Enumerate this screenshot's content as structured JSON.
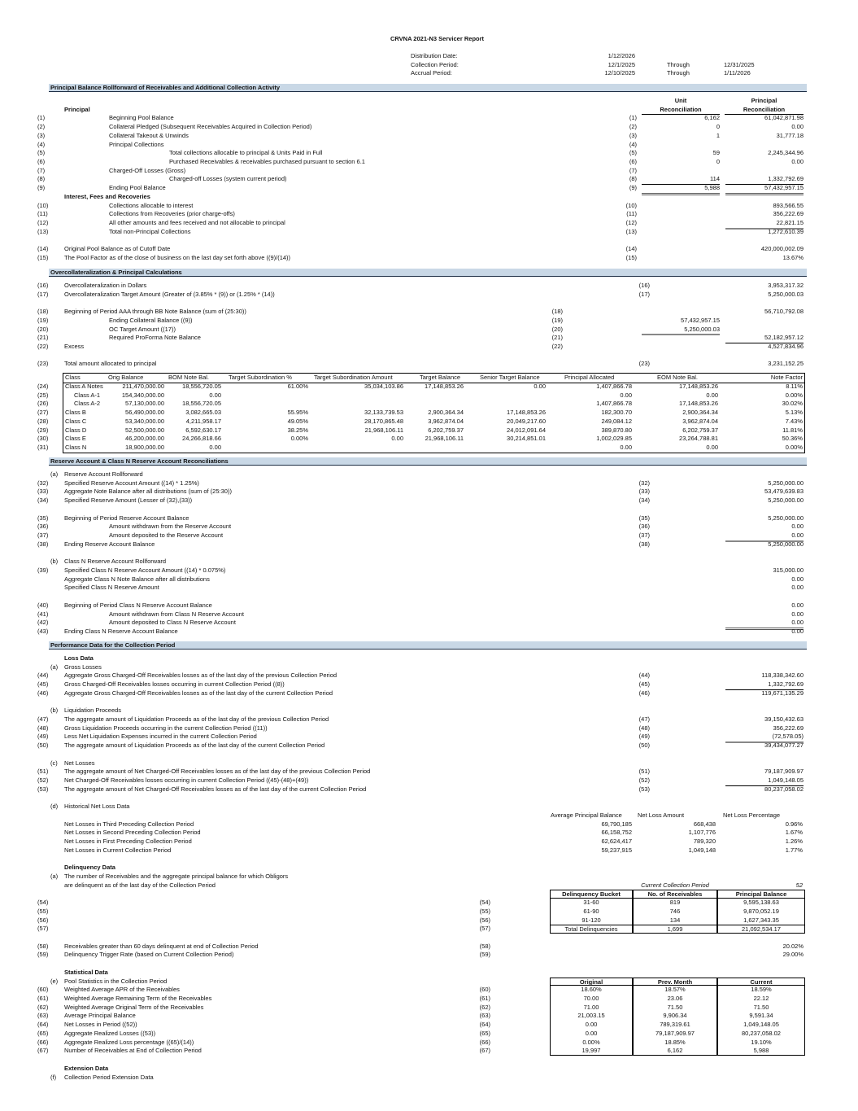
{
  "title": "CRVNA 2021-N3 Servicer Report",
  "header": {
    "rows": [
      {
        "label": "Distribution Date:",
        "start": "1/12/2026",
        "through": "",
        "end": ""
      },
      {
        "label": "Collection Period:",
        "start": "12/1/2025",
        "through": "Through",
        "end": "12/31/2025"
      },
      {
        "label": "Accrual Period:",
        "start": "12/10/2025",
        "through": "Through",
        "end": "1/11/2026"
      }
    ]
  },
  "principal": {
    "title": "Principal Balance Rollforward of Receivables and Additional Collection Activity",
    "unit_head": [
      "Unit",
      "Reconciliation"
    ],
    "principal_head": [
      "Principal",
      "Reconciliation"
    ],
    "heading": "Principal",
    "rows": [
      {
        "n": "(1)",
        "label": "Beginning Pool Balance",
        "lvl": 1,
        "ref": "(1)",
        "mid": "6,162",
        "val": "61,042,871.98"
      },
      {
        "n": "(2)",
        "label": "Collateral Pledged (Subsequent Receivables Acquired in Collection Period)",
        "lvl": 1,
        "ref": "(2)",
        "mid": "0",
        "val": "0.00"
      },
      {
        "n": "(3)",
        "label": "Collateral Takeout & Unwinds",
        "lvl": 1,
        "ref": "(3)",
        "mid": "1",
        "val": "31,777.18"
      },
      {
        "n": "(4)",
        "label": "Principal Collections",
        "lvl": 1,
        "ref": "(4)"
      },
      {
        "n": "(5)",
        "label": "Total collections allocable to principal & Units Paid in Full",
        "lvl": 2,
        "ref": "(5)",
        "mid": "59",
        "val": "2,245,344.96"
      },
      {
        "n": "(6)",
        "label": "Purchased Receivables & receivables purchased pursuant to section 6.1",
        "lvl": 2,
        "ref": "(6)",
        "mid": "0",
        "val": "0.00"
      },
      {
        "n": "(7)",
        "label": "Charged-Off Losses (Gross)",
        "lvl": 1,
        "ref": "(7)"
      },
      {
        "n": "(8)",
        "label": "Charged-off Losses (system current period)",
        "lvl": 2,
        "ref": "(8)",
        "mid": "114",
        "val": "1,332,792.69"
      },
      {
        "n": "(9)",
        "label": "Ending Pool Balance",
        "lvl": 1,
        "ref": "(9)",
        "mid": "5,988",
        "val": "57,432,957.15"
      },
      {
        "t": "h",
        "label": "Interest, Fees and Recoveries"
      },
      {
        "n": "(10)",
        "label": "Collections allocable to interest",
        "lvl": 1,
        "ref": "(10)",
        "val": "893,566.55"
      },
      {
        "n": "(11)",
        "label": "Collections from Recoveries (prior charge-offs)",
        "lvl": 1,
        "ref": "(11)",
        "val": "356,222.69"
      },
      {
        "n": "(12)",
        "label": "All other amounts and fees received and not allocable to principal",
        "lvl": 1,
        "ref": "(12)",
        "val": "22,821.15"
      },
      {
        "n": "(13)",
        "label": "Total non-Principal Collections",
        "lvl": 1,
        "ref": "(13)",
        "val": "1,272,610.39"
      },
      {
        "t": "b"
      },
      {
        "n": "(14)",
        "label": "Original Pool Balance as of Cutoff Date",
        "lvl": 0,
        "ref": "(14)",
        "val": "420,000,002.09"
      },
      {
        "n": "(15)",
        "label": "The Pool Factor as of the close of business on the last day set forth above ((9)/(14))",
        "lvl": 0,
        "ref": "(15)",
        "val": "13.67%"
      }
    ]
  },
  "oc": {
    "title": "Overcollateralization & Principal Calculations",
    "rows": [
      {
        "n": "(16)",
        "label": "Overcollateralization in Dollars",
        "lvl": 0,
        "ref": "(16)",
        "val": "3,953,317.32"
      },
      {
        "n": "(17)",
        "label": "Overcollateralization Target Amount (Greater of (3.85% * (9)) or (1.25% * (14))",
        "lvl": 0,
        "ref": "(17)",
        "val": "5,250,000.03"
      },
      {
        "t": "b"
      },
      {
        "n": "(18)",
        "label": "Beginning of Period AAA through BB Note Balance (sum of (25:30))",
        "lvl": 0,
        "ref": "(18)",
        "val": "56,710,792.08"
      },
      {
        "n": "(19)",
        "label": "Ending Collateral Balance ((9))",
        "lvl": 1,
        "ref": "(19)",
        "mid": "57,432,957.15"
      },
      {
        "n": "(20)",
        "label": "OC Target Amount ((17))",
        "lvl": 1,
        "ref": "(20)",
        "mid": "5,250,000.03"
      },
      {
        "n": "(21)",
        "label": "Required ProForma Note Balance",
        "lvl": 1,
        "ref": "(21)",
        "val": "52,182,957.12"
      },
      {
        "n": "(22)",
        "label": "Excess",
        "lvl": 0,
        "ref": "(22)",
        "val": "4,527,834.96"
      },
      {
        "t": "b"
      },
      {
        "n": "(23)",
        "label": "Total amount allocated to principal",
        "lvl": 0,
        "ref": "(23)",
        "val": "3,231,152.25"
      }
    ],
    "class_table": {
      "columns": [
        "Class",
        "Orig Balance",
        "BOM Note Bal.",
        "Target Subordination %",
        "Target Subordination Amount",
        "Target Balance",
        "Senior Target Balance",
        "Principal Allocated",
        "EOM Note Bal.",
        "Note Factor"
      ],
      "rows": [
        {
          "n": "(24)",
          "cells": [
            "Class A Notes",
            "211,470,000.00",
            "18,556,720.05",
            "61.00%",
            "35,034,103.86",
            "17,148,853.26",
            "0.00",
            "1,407,866.78",
            "17,148,853.26",
            "8.11%"
          ]
        },
        {
          "n": "(25)",
          "cells": [
            "Class A-1",
            "154,340,000.00",
            "0.00",
            "",
            "",
            "",
            "",
            "0.00",
            "0.00",
            "0.00%"
          ]
        },
        {
          "n": "(26)",
          "cells": [
            "Class A-2",
            "57,130,000.00",
            "18,556,720.05",
            "",
            "",
            "",
            "",
            "1,407,866.78",
            "17,148,853.26",
            "30.02%"
          ]
        },
        {
          "n": "(27)",
          "cells": [
            "Class B",
            "56,490,000.00",
            "3,082,665.03",
            "55.95%",
            "32,133,739.53",
            "2,900,364.34",
            "17,148,853.26",
            "182,300.70",
            "2,900,364.34",
            "5.13%"
          ]
        },
        {
          "n": "(28)",
          "cells": [
            "Class C",
            "53,340,000.00",
            "4,211,958.17",
            "49.05%",
            "28,170,865.48",
            "3,962,874.04",
            "20,049,217.60",
            "249,084.12",
            "3,962,874.04",
            "7.43%"
          ]
        },
        {
          "n": "(29)",
          "cells": [
            "Class D",
            "52,500,000.00",
            "6,592,630.17",
            "38.25%",
            "21,968,106.11",
            "6,202,759.37",
            "24,012,091.64",
            "389,870.80",
            "6,202,759.37",
            "11.81%"
          ]
        },
        {
          "n": "(30)",
          "cells": [
            "Class E",
            "46,200,000.00",
            "24,266,818.66",
            "0.00%",
            "0.00",
            "21,968,106.11",
            "30,214,851.01",
            "1,002,029.85",
            "23,264,788.81",
            "50.36%"
          ]
        },
        {
          "n": "(31)",
          "cells": [
            "Class N",
            "18,900,000.00",
            "0.00",
            "",
            "",
            "",
            "",
            "0.00",
            "0.00",
            "0.00%"
          ]
        }
      ]
    }
  },
  "reserve": {
    "title": "Reserve Account & Class N Reserve Account Reconciliations",
    "rows": [
      {
        "letter": "(a)",
        "label": "Reserve Account Rollforward"
      },
      {
        "n": "(32)",
        "label": "Specified Reserve Account Amount ((14) * 1.25%)",
        "ref": "(32)",
        "val": "5,250,000.00"
      },
      {
        "n": "(33)",
        "label": "Aggregate Note Balance after all distributions (sum of (25:30))",
        "ref": "(33)",
        "val": "53,479,639.83"
      },
      {
        "n": "(34)",
        "label": "Specified Reserve Amount (Lesser of (32),(33))",
        "ref": "(34)",
        "val": "5,250,000.00"
      },
      {
        "t": "b"
      },
      {
        "n": "(35)",
        "label": "Beginning of Period Reserve Account Balance",
        "ref": "(35)",
        "val": "5,250,000.00"
      },
      {
        "n": "(36)",
        "label": "Amount withdrawn from the Reserve Account",
        "lvl": 1,
        "ref": "(36)",
        "val": "0.00"
      },
      {
        "n": "(37)",
        "label": "Amount deposited to the Reserve Account",
        "lvl": 1,
        "ref": "(37)",
        "val": "0.00"
      },
      {
        "n": "(38)",
        "label": "Ending Reserve Account Balance",
        "ref": "(38)",
        "val": "5,250,000.00"
      },
      {
        "t": "b"
      },
      {
        "letter": "(b)",
        "label": "Class N Reserve Account Rollforward"
      },
      {
        "n": "(39)",
        "label": "Specified Class N Reserve Account Amount ((14) * 0.075%)",
        "val": "315,000.00"
      },
      {
        "label": "Aggregate Class N Note Balance after all distributions",
        "val": "0.00"
      },
      {
        "label": "Specified Class N Reserve Amount",
        "val": "0.00"
      },
      {
        "t": "b"
      },
      {
        "n": "(40)",
        "label": "Beginning of Period Class N Reserve Account Balance",
        "val": "0.00"
      },
      {
        "n": "(41)",
        "label": "Amount withdrawn from Class N Reserve Account",
        "lvl": 1,
        "val": "0.00"
      },
      {
        "n": "(42)",
        "label": "Amount deposited to Class N Reserve Account",
        "lvl": 1,
        "val": "0.00"
      },
      {
        "n": "(43)",
        "label": "Ending Class N Reserve Account Balance",
        "val": "0.00"
      }
    ]
  },
  "performance": {
    "title": "Performance Data for the Collection Period",
    "rows": [
      {
        "t": "h",
        "label": "Loss Data"
      },
      {
        "letter": "(a)",
        "label": "Gross Losses"
      },
      {
        "n": "(44)",
        "label": "Aggregate Gross Charged-Off Receivables losses as of the last day of the previous Collection Period",
        "ref": "(44)",
        "val": "118,338,342.60"
      },
      {
        "n": "(45)",
        "label": "Gross Charged-Off Receivables losses occurring in current Collection Period ((8))",
        "ref": "(45)",
        "val": "1,332,792.69"
      },
      {
        "n": "(46)",
        "label": "Aggregate Gross Charged-Off Receivables losses as of the last day of the current Collection Period",
        "ref": "(46)",
        "val": "119,671,135.29"
      },
      {
        "t": "b"
      },
      {
        "letter": "(b)",
        "label": "Liquidation Proceeds"
      },
      {
        "n": "(47)",
        "label": "The aggregate amount of Liquidation Proceeds as of the last day of the previous Collection Period",
        "ref": "(47)",
        "val": "39,150,432.63"
      },
      {
        "n": "(48)",
        "label": "Gross Liquidation Proceeds occurring in the current Collection Period ((11))",
        "ref": "(48)",
        "val": "356,222.69"
      },
      {
        "n": "(49)",
        "label": "Less Net Liquidation Expenses incurred in the current Collection Period",
        "ref": "(49)",
        "val": "(72,578.05)"
      },
      {
        "n": "(50)",
        "label": "The aggregate amount of Liquidation Proceeds as of the last day of the current Collection Period",
        "ref": "(50)",
        "val": "39,434,077.27"
      },
      {
        "t": "b"
      },
      {
        "letter": "(c)",
        "label": "Net Losses"
      },
      {
        "n": "(51)",
        "label": "The aggregate amount of Net Charged-Off Receivables losses as of the last day of the previous Collection Period",
        "ref": "(51)",
        "val": "79,187,909.97"
      },
      {
        "n": "(52)",
        "label": "Net Charged-Off Receivables losses occurring in current Collection Period ((45)-(48)+(49))",
        "ref": "(52)",
        "val": "1,049,148.05"
      },
      {
        "n": "(53)",
        "label": "The aggregate amount of Net Charged-Off Receivables losses as of the last day of the current Collection Period",
        "ref": "(53)",
        "val": "80,237,058.02"
      },
      {
        "t": "b"
      },
      {
        "letter": "(d)",
        "label": "Historical Net Loss Data"
      },
      {
        "t": "hh",
        "cells": [
          "Average Principal Balance",
          "Net Loss Amount",
          "Net Loss Percentage"
        ]
      },
      {
        "t": "hr",
        "label": "Net Losses in Third Preceding Collection Period",
        "cells": [
          "69,790,185",
          "668,438",
          "0.96%"
        ]
      },
      {
        "t": "hr",
        "label": "Net Losses in Second Preceding Collection Period",
        "cells": [
          "66,158,752",
          "1,107,776",
          "1.67%"
        ]
      },
      {
        "t": "hr",
        "label": "Net Losses in First Preceding Collection Period",
        "cells": [
          "62,624,417",
          "789,320",
          "1.26%"
        ]
      },
      {
        "t": "hr",
        "label": "Net Losses in Current Collection Period",
        "cells": [
          "59,237,915",
          "1,049,148",
          "1.77%"
        ]
      },
      {
        "t": "b"
      },
      {
        "t": "h",
        "label": "Delinquency Data"
      },
      {
        "letter": "(a)",
        "label": "The number of Receivables and the aggregate principal balance for which Obligors"
      },
      {
        "t": "cp",
        "label": "are delinquent as of the last day of the Collection Period",
        "cells": [
          "Current Collection Period",
          "52"
        ]
      },
      {
        "t": "bh",
        "cells": [
          "Delinquency Bucket",
          "No. of Receivables",
          "Principal Balance"
        ]
      },
      {
        "t": "bb",
        "n": "(54)",
        "ref": "(54)",
        "cells": [
          "31-60",
          "819",
          "9,595,138.63"
        ]
      },
      {
        "t": "bb",
        "n": "(55)",
        "ref": "(55)",
        "cells": [
          "61-90",
          "746",
          "9,870,052.19"
        ]
      },
      {
        "t": "bb",
        "n": "(56)",
        "ref": "(56)",
        "cells": [
          "91-120",
          "134",
          "1,627,343.35"
        ]
      },
      {
        "t": "bt",
        "n": "(57)",
        "ref": "(57)",
        "cells": [
          "Total Delinquencies",
          "1,699",
          "21,092,534.17"
        ]
      },
      {
        "t": "b"
      },
      {
        "n": "(58)",
        "label": "Receivables greater than 60 days delinquent at end of Collection Period",
        "ref": "(58)",
        "val": "20.02%"
      },
      {
        "n": "(59)",
        "label": "Delinquency Trigger Rate (based on Current Collection Period)",
        "ref": "(59)",
        "val": "29.00%"
      },
      {
        "t": "b"
      },
      {
        "t": "h",
        "label": "Statistical Data"
      },
      {
        "t": "bh",
        "letter": "(e)",
        "label": "Pool Statistics in the Collection Period",
        "cells": [
          "Original",
          "Prev. Month",
          "Current"
        ]
      },
      {
        "t": "bb",
        "n": "(60)",
        "label": "Weighted Average APR of the Receivables",
        "ref": "(60)",
        "cells": [
          "18.60%",
          "18.57%",
          "18.59%"
        ]
      },
      {
        "t": "bb",
        "n": "(61)",
        "label": "Weighted Average Remaining Term of the Receivables",
        "ref": "(61)",
        "cells": [
          "70.00",
          "23.06",
          "22.12"
        ]
      },
      {
        "t": "bb",
        "n": "(62)",
        "label": "Weighted Average Original Term of the Receivables",
        "ref": "(62)",
        "cells": [
          "71.00",
          "71.50",
          "71.50"
        ]
      },
      {
        "t": "bb",
        "n": "(63)",
        "label": "Average Principal Balance",
        "ref": "(63)",
        "cells": [
          "21,003.15",
          "9,906.34",
          "9,591.34"
        ]
      },
      {
        "t": "bb",
        "n": "(64)",
        "label": "Net Losses in Period ((52))",
        "ref": "(64)",
        "cells": [
          "0.00",
          "789,319.61",
          "1,049,148.05"
        ]
      },
      {
        "t": "bb",
        "n": "(65)",
        "label": "Aggregate Realized Losses ((53))",
        "ref": "(65)",
        "cells": [
          "0.00",
          "79,187,909.97",
          "80,237,058.02"
        ]
      },
      {
        "t": "bb",
        "n": "(66)",
        "label": "Aggregate Realized Loss percentage ((65)/(14))",
        "ref": "(66)",
        "cells": [
          "0.00%",
          "18.85%",
          "19.10%"
        ]
      },
      {
        "t": "bl",
        "n": "(67)",
        "label": "Number of Receivables at End of Collection Period",
        "ref": "(67)",
        "cells": [
          "19,997",
          "6,162",
          "5,988"
        ]
      },
      {
        "t": "b"
      },
      {
        "t": "h",
        "label": "Extension Data"
      },
      {
        "letter": "(f)",
        "label": "Collection Period Extension Data"
      }
    ]
  },
  "colors": {
    "section_bar": "#c9d8e6",
    "section_rule": "#1e2f45"
  }
}
